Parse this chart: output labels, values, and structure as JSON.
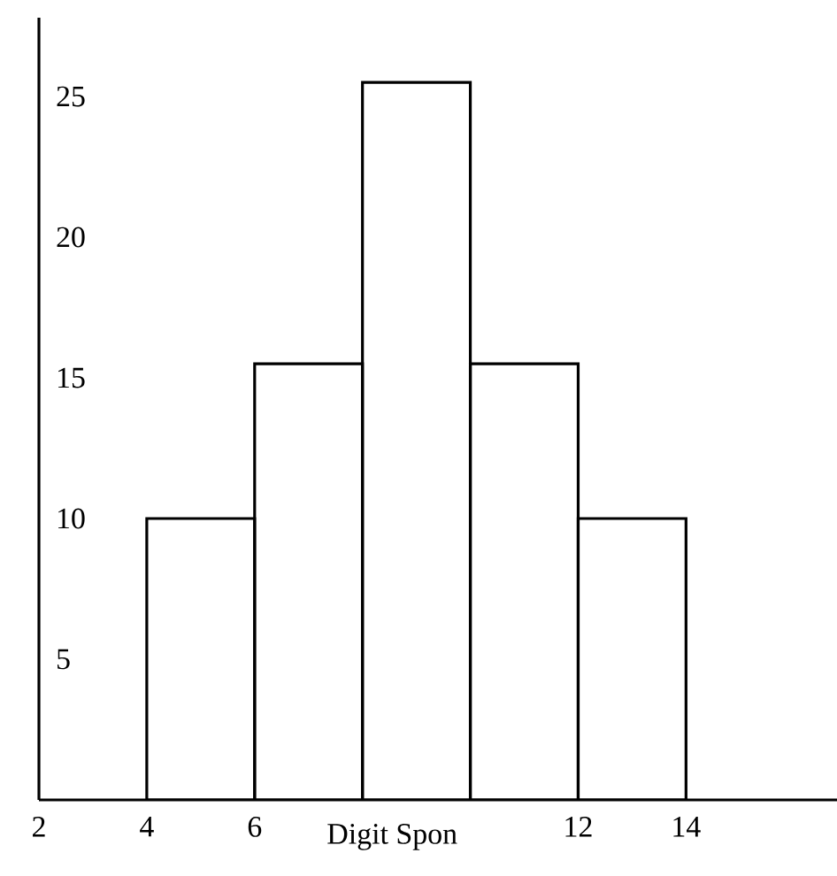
{
  "chart_data": {
    "type": "histogram",
    "xlabel": "Digit Spon",
    "bins": [
      4,
      6,
      8,
      10,
      12,
      14
    ],
    "values": [
      10,
      15.5,
      25.5,
      15.5,
      10
    ],
    "color": "#000000",
    "xlim": [
      2,
      16.8
    ],
    "ylim": [
      0,
      27.8
    ],
    "xticks": [
      2,
      4,
      6,
      12,
      14
    ],
    "yticks": [
      5,
      10,
      15,
      20,
      25
    ],
    "grid": false
  }
}
